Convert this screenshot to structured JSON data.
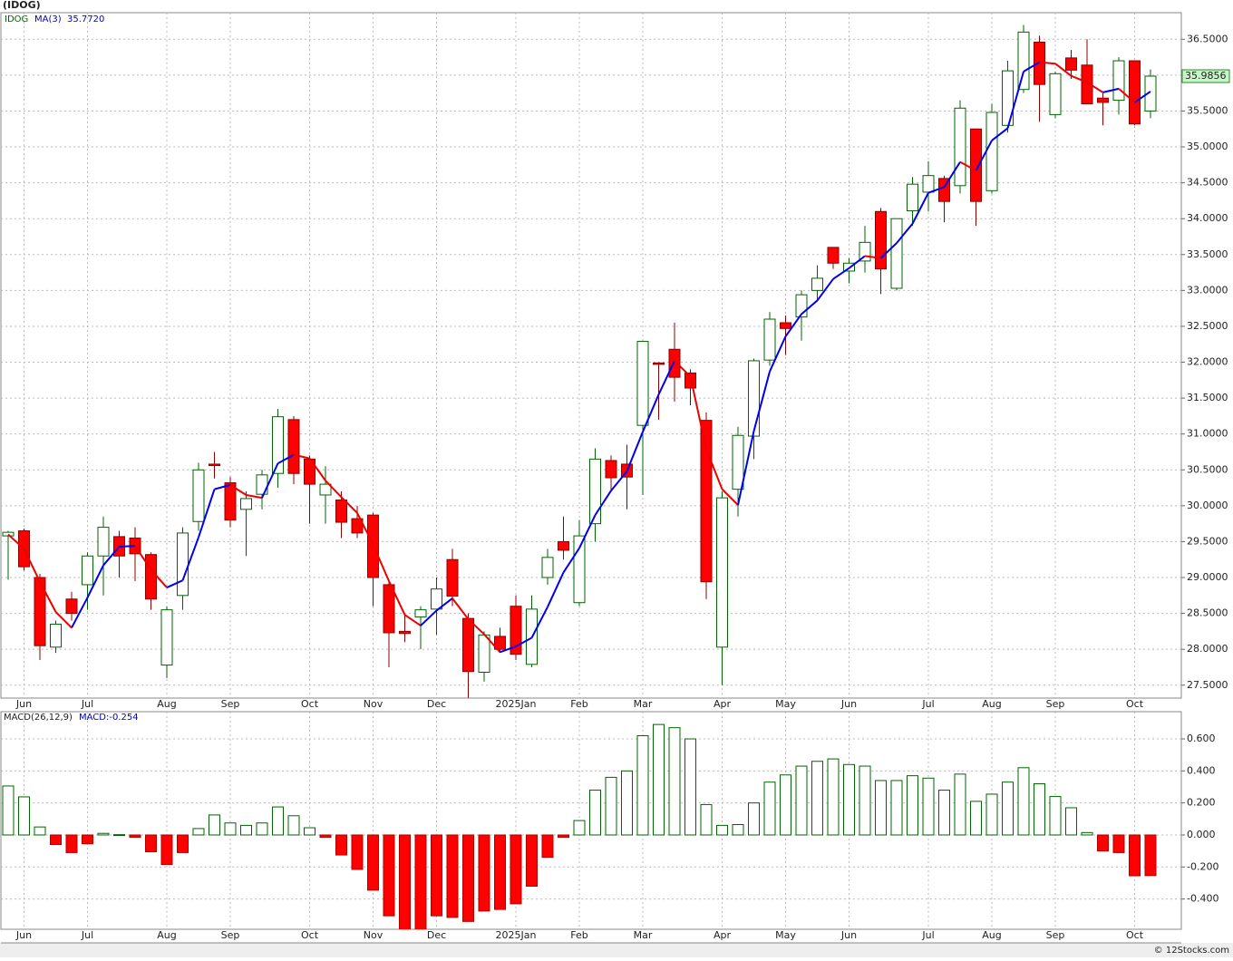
{
  "chart_data": [
    {
      "type": "candlestick",
      "title": "(IDOG)",
      "legend": "IDOG",
      "categories": [
        null,
        "Jun",
        null,
        null,
        null,
        "Jul",
        null,
        null,
        null,
        null,
        "Aug",
        null,
        null,
        null,
        "Sep",
        null,
        null,
        null,
        null,
        "Oct",
        null,
        null,
        null,
        "Nov",
        null,
        null,
        null,
        "Dec",
        null,
        null,
        null,
        null,
        "2025Jan",
        null,
        null,
        null,
        "Feb",
        null,
        null,
        null,
        "Mar",
        null,
        null,
        null,
        null,
        "Apr",
        null,
        null,
        null,
        "May",
        null,
        null,
        null,
        "Jun",
        null,
        null,
        null,
        null,
        "Jul",
        null,
        null,
        null,
        "Aug",
        null,
        null,
        null,
        "Sep",
        null,
        null,
        null,
        null,
        "Oct",
        null
      ],
      "open": [
        29.58,
        29.65,
        29.0,
        28.03,
        28.7,
        28.9,
        29.3,
        29.57,
        29.55,
        29.32,
        27.78,
        28.75,
        29.78,
        30.58,
        30.32,
        29.95,
        30.16,
        30.45,
        31.2,
        30.65,
        30.15,
        30.08,
        29.82,
        29.87,
        28.9,
        28.25,
        28.45,
        28.56,
        29.25,
        28.43,
        27.68,
        28.18,
        28.6,
        27.79,
        29.0,
        29.5,
        28.65,
        29.75,
        30.63,
        30.58,
        31.12,
        31.99,
        32.18,
        31.85,
        31.19,
        28.03,
        30.23,
        30.97,
        32.03,
        32.55,
        32.63,
        33.0,
        33.6,
        33.27,
        33.41,
        34.1,
        33.03,
        34.11,
        34.37,
        34.56,
        34.46,
        35.25,
        34.39,
        35.3,
        35.8,
        36.46,
        35.45,
        36.24,
        36.14,
        35.68,
        35.65,
        36.2,
        35.5
      ],
      "high": [
        29.65,
        29.68,
        29.05,
        28.4,
        28.8,
        29.35,
        29.85,
        29.65,
        29.7,
        29.35,
        28.6,
        29.7,
        30.6,
        30.75,
        30.4,
        30.2,
        30.5,
        31.35,
        31.25,
        30.7,
        30.55,
        30.2,
        30.0,
        29.9,
        28.95,
        28.5,
        28.6,
        29.0,
        29.4,
        28.5,
        28.25,
        28.3,
        28.75,
        28.75,
        29.4,
        29.85,
        29.8,
        30.8,
        30.7,
        30.85,
        32.3,
        32.0,
        32.55,
        31.9,
        31.3,
        30.2,
        31.1,
        32.05,
        32.7,
        32.65,
        33.0,
        33.35,
        33.6,
        33.45,
        33.9,
        34.15,
        34.0,
        34.58,
        34.8,
        34.6,
        35.65,
        35.25,
        35.6,
        36.2,
        36.7,
        36.55,
        36.05,
        36.35,
        36.5,
        35.75,
        36.25,
        36.2,
        36.08
      ],
      "low": [
        28.97,
        29.1,
        27.85,
        27.95,
        28.4,
        28.55,
        28.75,
        29.0,
        28.95,
        28.55,
        27.6,
        28.55,
        29.65,
        30.38,
        29.7,
        29.3,
        29.95,
        30.25,
        30.3,
        29.75,
        29.75,
        29.55,
        29.55,
        28.6,
        27.75,
        28.1,
        28.0,
        28.2,
        28.6,
        27.3,
        27.55,
        27.95,
        27.85,
        27.75,
        28.9,
        29.25,
        28.6,
        29.5,
        30.2,
        29.95,
        30.15,
        31.2,
        31.45,
        31.4,
        28.7,
        27.5,
        29.85,
        30.65,
        31.95,
        32.1,
        32.3,
        32.85,
        33.3,
        33.1,
        33.25,
        32.95,
        33.0,
        33.9,
        34.1,
        33.95,
        34.35,
        33.9,
        34.35,
        35.2,
        35.75,
        35.35,
        35.4,
        35.95,
        35.6,
        35.3,
        35.45,
        35.3,
        35.4
      ],
      "close": [
        29.63,
        29.15,
        28.05,
        28.35,
        28.5,
        29.3,
        29.7,
        29.3,
        29.33,
        28.7,
        28.55,
        29.62,
        30.5,
        30.56,
        29.8,
        30.1,
        30.43,
        31.24,
        30.45,
        30.3,
        30.3,
        29.77,
        29.62,
        29.0,
        28.23,
        28.22,
        28.55,
        28.84,
        28.74,
        27.69,
        28.2,
        28.0,
        27.93,
        28.56,
        29.28,
        29.38,
        29.58,
        30.65,
        30.39,
        30.4,
        32.29,
        31.97,
        31.79,
        31.64,
        28.94,
        30.11,
        30.98,
        32.02,
        32.6,
        32.47,
        32.94,
        33.17,
        33.38,
        33.38,
        33.67,
        33.3,
        34.0,
        34.48,
        34.6,
        34.24,
        35.54,
        34.24,
        35.48,
        36.06,
        36.6,
        35.87,
        36.02,
        36.07,
        35.6,
        35.62,
        36.2,
        35.32,
        35.9856
      ],
      "last_label": "35.9856",
      "up_color": "#006400",
      "down_color": "#ff0000",
      "ma": {
        "name": "MA(3)",
        "value_label": "35.7720",
        "rising_color": "#0000ee",
        "falling_color": "#ee0000",
        "values": [
          29.6,
          29.4,
          28.94,
          28.52,
          28.3,
          28.72,
          29.17,
          29.43,
          29.44,
          29.11,
          28.86,
          28.96,
          29.56,
          30.23,
          30.29,
          30.15,
          30.11,
          30.59,
          30.71,
          30.66,
          30.35,
          30.12,
          29.9,
          29.46,
          28.95,
          28.48,
          28.33,
          28.54,
          28.71,
          28.42,
          28.21,
          27.96,
          28.04,
          28.16,
          28.59,
          29.07,
          29.41,
          29.87,
          30.21,
          30.48,
          31.03,
          31.55,
          32.02,
          31.8,
          30.79,
          30.23,
          30.01,
          31.04,
          31.87,
          32.36,
          32.67,
          32.86,
          33.16,
          33.31,
          33.48,
          33.45,
          33.66,
          33.93,
          34.36,
          34.44,
          34.79,
          34.67,
          35.09,
          35.26,
          36.05,
          36.18,
          36.16,
          35.99,
          35.9,
          35.76,
          35.81,
          35.62,
          35.772
        ]
      },
      "ylim": [
        27.32,
        36.87
      ],
      "yticks": [
        {
          "value": 27.5,
          "label": "27.5000"
        },
        {
          "value": 28,
          "label": "28.0000"
        },
        {
          "value": 28.5,
          "label": "28.5000"
        },
        {
          "value": 29,
          "label": "29.0000"
        },
        {
          "value": 29.5,
          "label": "29.5000"
        },
        {
          "value": 30,
          "label": "30.0000"
        },
        {
          "value": 30.5,
          "label": "30.5000"
        },
        {
          "value": 31,
          "label": "31.0000"
        },
        {
          "value": 31.5,
          "label": "31.5000"
        },
        {
          "value": 32,
          "label": "32.0000"
        },
        {
          "value": 32.5,
          "label": "32.5000"
        },
        {
          "value": 33,
          "label": "33.0000"
        },
        {
          "value": 33.5,
          "label": "33.5000"
        },
        {
          "value": 34,
          "label": "34.0000"
        },
        {
          "value": 34.5,
          "label": "34.5000"
        },
        {
          "value": 35,
          "label": "35.0000"
        },
        {
          "value": 35.5,
          "label": "35.5000"
        },
        {
          "value": 36,
          "label": "36.0000"
        },
        {
          "value": 36.5,
          "label": "36.5000"
        }
      ],
      "grid": true
    },
    {
      "type": "bar",
      "title": "MACD(26,12,9)",
      "label": "MACD:-0.254",
      "categories": [
        null,
        "Jun",
        null,
        null,
        null,
        "Jul",
        null,
        null,
        null,
        null,
        "Aug",
        null,
        null,
        null,
        "Sep",
        null,
        null,
        null,
        null,
        "Oct",
        null,
        null,
        null,
        "Nov",
        null,
        null,
        null,
        "Dec",
        null,
        null,
        null,
        null,
        "2025Jan",
        null,
        null,
        null,
        "Feb",
        null,
        null,
        null,
        "Mar",
        null,
        null,
        null,
        null,
        "Apr",
        null,
        null,
        null,
        "May",
        null,
        null,
        null,
        "Jun",
        null,
        null,
        null,
        null,
        "Jul",
        null,
        null,
        null,
        "Aug",
        null,
        null,
        null,
        "Sep",
        null,
        null,
        null,
        null,
        "Oct",
        null
      ],
      "values": [
        0.306,
        0.238,
        0.05,
        -0.06,
        -0.11,
        -0.055,
        0.01,
        0.002,
        -0.015,
        -0.105,
        -0.185,
        -0.11,
        0.04,
        0.125,
        0.075,
        0.06,
        0.075,
        0.175,
        0.12,
        0.045,
        -0.015,
        -0.125,
        -0.215,
        -0.345,
        -0.505,
        -0.6,
        -0.6,
        -0.505,
        -0.515,
        -0.54,
        -0.475,
        -0.465,
        -0.43,
        -0.32,
        -0.14,
        -0.015,
        0.09,
        0.28,
        0.36,
        0.4,
        0.62,
        0.69,
        0.67,
        0.6,
        0.19,
        0.06,
        0.065,
        0.2,
        0.33,
        0.375,
        0.43,
        0.46,
        0.475,
        0.44,
        0.43,
        0.34,
        0.34,
        0.37,
        0.355,
        0.28,
        0.38,
        0.21,
        0.255,
        0.33,
        0.42,
        0.32,
        0.24,
        0.17,
        0.015,
        -0.1,
        -0.11,
        -0.255,
        -0.254
      ],
      "positive_color": "#006400",
      "negative_color": "#ff0000",
      "ylim": [
        -0.589,
        0.77
      ],
      "yticks": [
        {
          "value": -0.4,
          "label": "-0.400"
        },
        {
          "value": -0.2,
          "label": "-0.200"
        },
        {
          "value": 0,
          "label": "0.000"
        },
        {
          "value": 0.2,
          "label": "0.200"
        },
        {
          "value": 0.4,
          "label": "0.400"
        },
        {
          "value": 0.6,
          "label": "0.600"
        }
      ],
      "grid": true
    }
  ],
  "footer": "© 12Stocks.com"
}
